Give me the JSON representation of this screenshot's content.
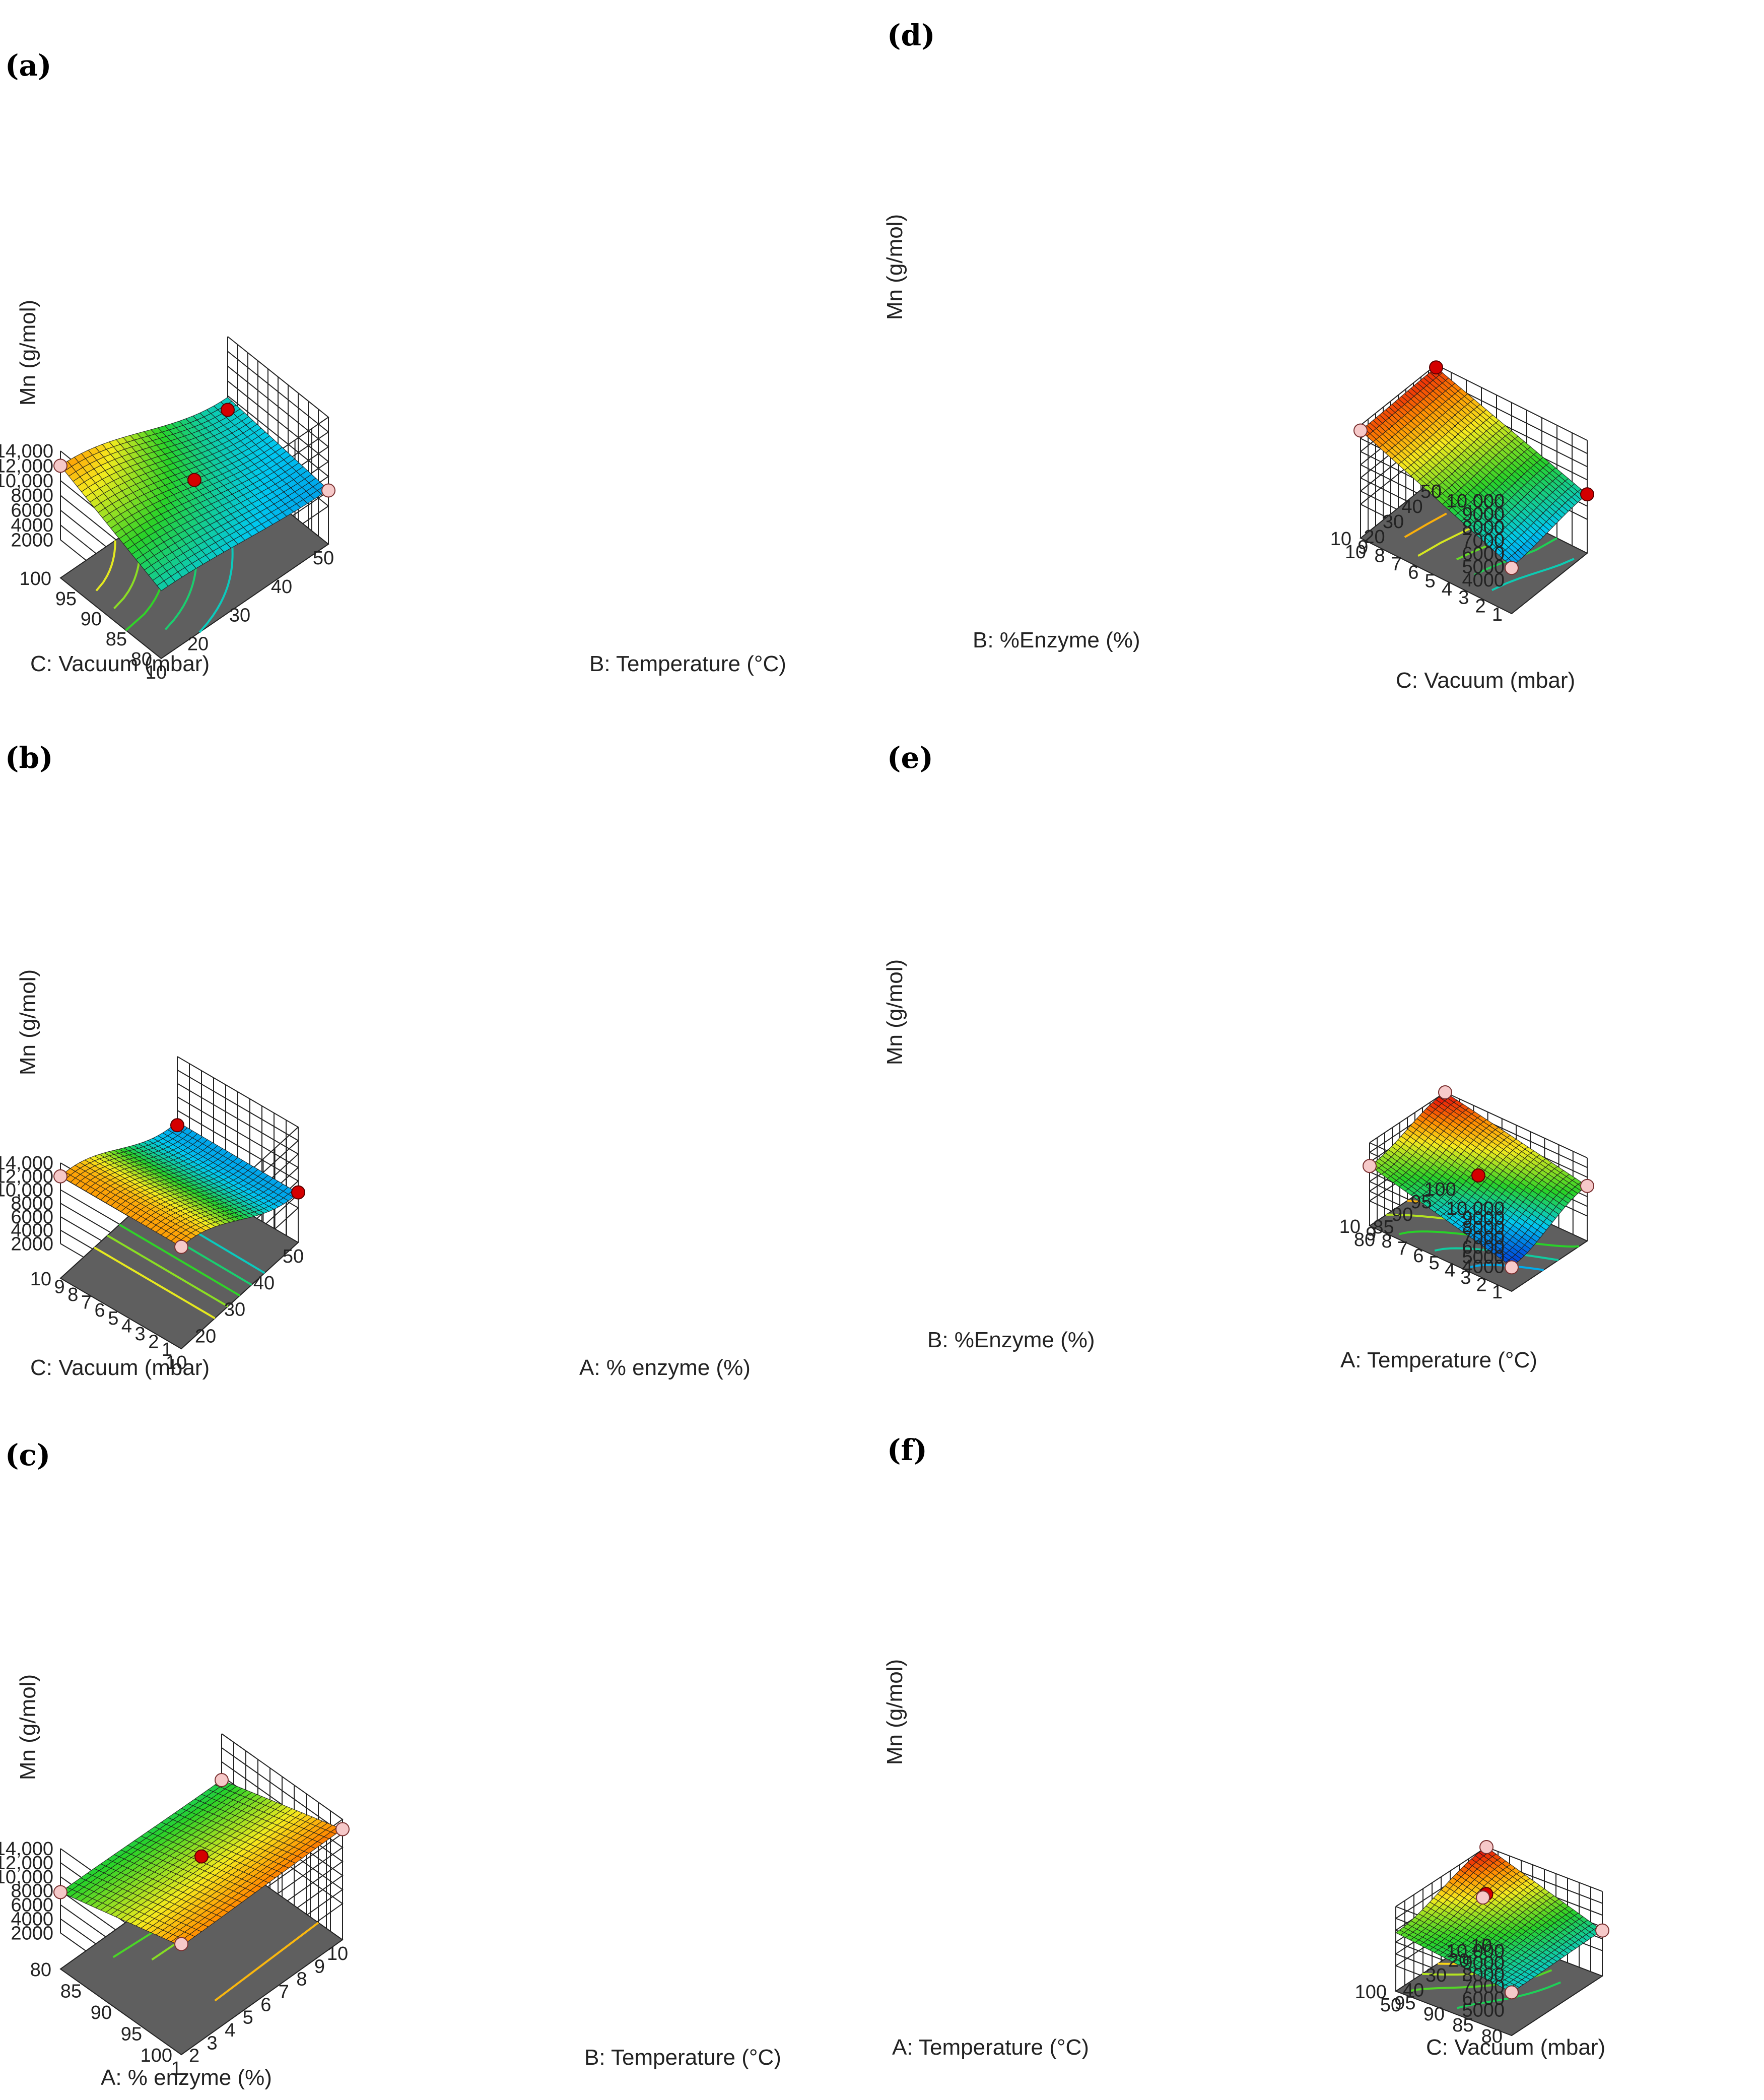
{
  "chart_data": [
    {
      "type": "surface",
      "panel_label": "(a)",
      "zlabel": "Mn (g/mol)",
      "z_ticks": [
        "2000",
        "4000",
        "6000",
        "8000",
        "10,000",
        "12,000",
        "14,000"
      ],
      "zlim": [
        2000,
        14000
      ],
      "x_axis": {
        "label": "C: Vacuum (mbar)",
        "ticks": [
          "10",
          "20",
          "30",
          "40",
          "50"
        ],
        "range": [
          10,
          50
        ]
      },
      "y_axis": {
        "label": "B: Temperature (°C)",
        "ticks": [
          "100",
          "95",
          "90",
          "85",
          "80"
        ],
        "range": [
          100,
          80
        ]
      },
      "surface_corners": {
        "x_min_y_min": 12000,
        "x_max_y_min": 5800,
        "x_max_y_max": 4200,
        "x_min_y_max": 6000
      },
      "points": [
        {
          "u": 0,
          "v": 0,
          "z": 12000,
          "style": "pink"
        },
        {
          "u": 0.5,
          "v": 0.5,
          "z": 7800,
          "style": "red"
        },
        {
          "u": 1,
          "v": 0,
          "z": 4100,
          "style": "red"
        },
        {
          "u": 1,
          "v": 1,
          "z": 4100,
          "style": "pink"
        }
      ]
    },
    {
      "type": "surface",
      "panel_label": "(b)",
      "zlabel": "Mn (g/mol)",
      "z_ticks": [
        "2000",
        "4000",
        "6000",
        "8000",
        "10,000",
        "12,000",
        "14,000"
      ],
      "zlim": [
        2000,
        14000
      ],
      "x_axis": {
        "label": "C: Vacuum (mbar)",
        "ticks": [
          "10",
          "20",
          "30",
          "40",
          "50"
        ],
        "range": [
          10,
          50
        ]
      },
      "y_axis": {
        "label": "A: % enzyme (%)",
        "ticks": [
          "10",
          "9",
          "8",
          "7",
          "6",
          "5",
          "4",
          "3",
          "2",
          "1"
        ],
        "range": [
          10,
          1
        ]
      },
      "surface_corners": {
        "x_min_y_min": 12000,
        "x_max_y_min": 4300,
        "x_max_y_max": 4200,
        "x_min_y_max": 12000
      },
      "points": [
        {
          "u": 0,
          "v": 0,
          "z": 12000,
          "style": "pink"
        },
        {
          "u": 0,
          "v": 1,
          "z": 12000,
          "style": "pink"
        },
        {
          "u": 1,
          "v": 0,
          "z": 3800,
          "style": "red"
        },
        {
          "u": 1,
          "v": 1,
          "z": 4300,
          "style": "red"
        }
      ]
    },
    {
      "type": "surface",
      "panel_label": "(c)",
      "zlabel": "Mn (g/mol)",
      "z_ticks": [
        "2000",
        "4000",
        "6000",
        "8000",
        "10,000",
        "12,000",
        "14,000"
      ],
      "zlim": [
        2000,
        14000
      ],
      "x_axis": {
        "label": "A: % enzyme (%)",
        "ticks": [
          "1",
          "2",
          "3",
          "4",
          "5",
          "6",
          "7",
          "8",
          "9",
          "10"
        ],
        "range": [
          1,
          10
        ]
      },
      "y_axis": {
        "label": "B: Temperature (°C)",
        "ticks": [
          "80",
          "85",
          "90",
          "95",
          "100"
        ],
        "range": [
          80,
          100
        ]
      },
      "surface_corners": {
        "x_min_y_min": 7800,
        "x_max_y_min": 7400,
        "x_max_y_max": 12600,
        "x_min_y_max": 12300
      },
      "points": [
        {
          "u": 0,
          "v": 0,
          "z": 7800,
          "style": "pink"
        },
        {
          "u": 1,
          "v": 0,
          "z": 7400,
          "style": "pink"
        },
        {
          "u": 0.5,
          "v": 0.5,
          "z": 10800,
          "style": "red"
        },
        {
          "u": 0,
          "v": 1,
          "z": 12600,
          "style": "pink"
        },
        {
          "u": 1,
          "v": 1,
          "z": 12600,
          "style": "pink"
        }
      ]
    },
    {
      "type": "surface",
      "panel_label": "(d)",
      "zlabel": "Mn (g/mol)",
      "z_ticks": [
        "4000",
        "5000",
        "6000",
        "7000",
        "8000",
        "9000",
        "10,000"
      ],
      "zlim": [
        4000,
        10000
      ],
      "x_axis": {
        "label": "C: Vacuum (mbar)",
        "ticks": [
          "10",
          "20",
          "30",
          "40",
          "50"
        ],
        "range": [
          10,
          50
        ]
      },
      "y_axis": {
        "label": "B: %Enzyme (%)",
        "ticks": [
          "1",
          "2",
          "3",
          "4",
          "5",
          "6",
          "7",
          "8",
          "9",
          "10"
        ],
        "range": [
          1,
          10
        ]
      },
      "surface_corners": {
        "x_min_y_min": 5000,
        "x_max_y_min": 5900,
        "x_max_y_max": 9800,
        "x_min_y_max": 9600
      },
      "points": [
        {
          "u": 0,
          "v": 1,
          "z": 9600,
          "style": "pink"
        },
        {
          "u": 1,
          "v": 1,
          "z": 9800,
          "style": "red"
        },
        {
          "u": 1,
          "v": 0,
          "z": 5900,
          "style": "red"
        },
        {
          "u": 0,
          "v": 0,
          "z": 4900,
          "style": "pink"
        }
      ]
    },
    {
      "type": "surface",
      "panel_label": "(e)",
      "zlabel": "Mn (g/mol)",
      "z_ticks": [
        "4000",
        "5000",
        "6000",
        "7000",
        "8000",
        "9000",
        "10,000"
      ],
      "zlim": [
        4000,
        10000
      ],
      "x_axis": {
        "label": "A: Temperature (°C)",
        "ticks": [
          "80",
          "85",
          "90",
          "95",
          "100"
        ],
        "range": [
          80,
          100
        ]
      },
      "y_axis": {
        "label": "B: %Enzyme (%)",
        "ticks": [
          "1",
          "2",
          "3",
          "4",
          "5",
          "6",
          "7",
          "8",
          "9",
          "10"
        ],
        "range": [
          1,
          10
        ]
      },
      "surface_corners": {
        "x_min_y_min": 4000,
        "x_max_y_min": 7100,
        "x_max_y_max": 10000,
        "x_min_y_max": 7600
      },
      "points": [
        {
          "u": 0,
          "v": 1,
          "z": 7600,
          "style": "pink"
        },
        {
          "u": 0.5,
          "v": 0.5,
          "z": 7400,
          "style": "red"
        },
        {
          "u": 1,
          "v": 0,
          "z": 7100,
          "style": "pink"
        },
        {
          "u": 0,
          "v": 0,
          "z": 3900,
          "style": "pink"
        },
        {
          "u": 1,
          "v": 1,
          "z": 10000,
          "style": "pink"
        }
      ]
    },
    {
      "type": "surface",
      "panel_label": "(f)",
      "zlabel": "Mn (g/mol)",
      "z_ticks": [
        "5000",
        "6000",
        "7000",
        "8000",
        "9000",
        "10,000"
      ],
      "zlim": [
        5000,
        10000
      ],
      "x_axis": {
        "label": "C: Vacuum (mbar)",
        "ticks": [
          "50",
          "40",
          "30",
          "20",
          "10"
        ],
        "range": [
          50,
          10
        ]
      },
      "y_axis": {
        "label": "A: Temperature (°C)",
        "ticks": [
          "80",
          "85",
          "90",
          "95",
          "100"
        ],
        "range": [
          80,
          100
        ]
      },
      "surface_corners": {
        "x_min_y_min": 6500,
        "x_max_y_min": 6700,
        "x_max_y_max": 10000,
        "x_min_y_max": 7800
      },
      "points": [
        {
          "u": 0,
          "v": 0,
          "z": 6500,
          "style": "pink"
        },
        {
          "u": 1,
          "v": 0,
          "z": 6700,
          "style": "pink"
        },
        {
          "u": 1,
          "v": 1,
          "z": 10000,
          "style": "pink"
        },
        {
          "u": 0.55,
          "v": 0.65,
          "z": 9600,
          "style": "red"
        },
        {
          "u": 0.45,
          "v": 0.6,
          "z": 10000,
          "style": "pink"
        }
      ]
    }
  ]
}
